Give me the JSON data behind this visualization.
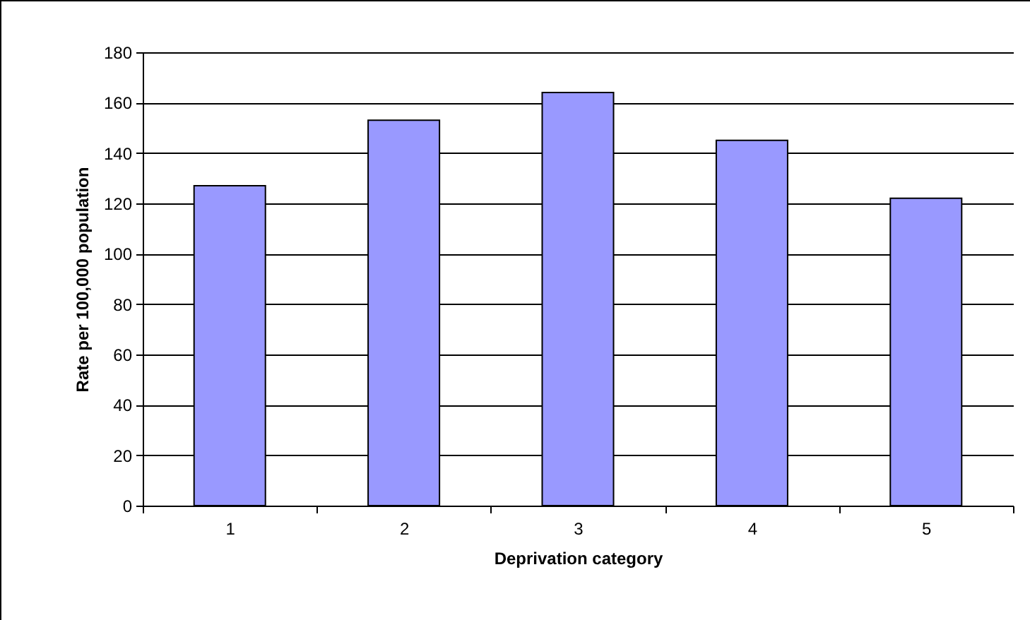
{
  "chart_data": {
    "type": "bar",
    "xlabel": "Deprivation category",
    "ylabel": "Rate per 100,000 population",
    "categories": [
      "1",
      "2",
      "3",
      "4",
      "5"
    ],
    "values": [
      127,
      153,
      164,
      145,
      122
    ],
    "color": "#9999ff",
    "ylim": [
      0,
      180
    ],
    "yticks": [
      0,
      20,
      40,
      60,
      80,
      100,
      120,
      140,
      160,
      180
    ],
    "grid": "y"
  }
}
